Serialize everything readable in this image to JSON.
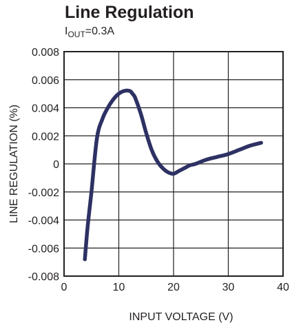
{
  "chart_data": {
    "type": "line",
    "title": "Line Regulation",
    "subtitle": {
      "main": "I",
      "subscript": "OUT",
      "rest": "=0.3A"
    },
    "xlabel": "INPUT VOLTAGE (V)",
    "ylabel": "LINE REGULATION (%)",
    "xlim": [
      0,
      40
    ],
    "ylim": [
      -0.008,
      0.008
    ],
    "xticks": [
      0,
      10,
      20,
      30,
      40
    ],
    "xtick_labels": [
      "0",
      "10",
      "20",
      "30",
      "40"
    ],
    "yticks": [
      -0.008,
      -0.006,
      -0.004,
      -0.002,
      0,
      0.002,
      0.004,
      0.006,
      0.008
    ],
    "ytick_labels": [
      "-0.008",
      "-0.006",
      "-0.004",
      "-0.002",
      "0",
      "0.002",
      "0.004",
      "0.006",
      "0.008"
    ],
    "grid": true,
    "line_color": "#2e3163",
    "series": [
      {
        "x": [
          3.8,
          4.3,
          5.0,
          6.0,
          7.0,
          8.0,
          9.0,
          10.0,
          11.0,
          12.0,
          12.5,
          13.0,
          14.0,
          15.0,
          16.0,
          17.0,
          18.0,
          19.0,
          20.0,
          21.0,
          22.0,
          23.0,
          24.0,
          26.0,
          28.0,
          30.0,
          32.0,
          34.0,
          36.0
        ],
        "values": [
          -0.0068,
          -0.0045,
          -0.002,
          0.0018,
          0.0032,
          0.004,
          0.0046,
          0.005,
          0.0052,
          0.0052,
          0.005,
          0.0047,
          0.0036,
          0.0022,
          0.001,
          0.0002,
          -0.0003,
          -0.0006,
          -0.0007,
          -0.0005,
          -0.0003,
          -0.0001,
          0.0,
          0.0003,
          0.0005,
          0.0007,
          0.001,
          0.0013,
          0.0015
        ]
      }
    ]
  }
}
